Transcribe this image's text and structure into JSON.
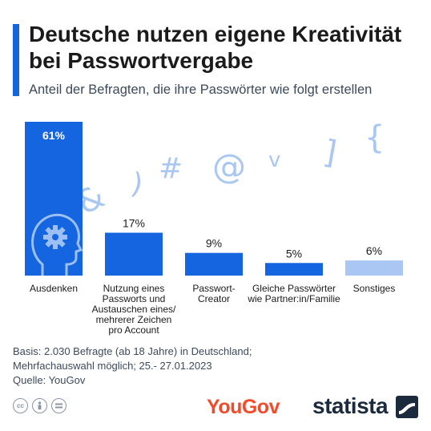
{
  "header": {
    "title": "Deutsche nutzen eigene Kreativität bei Passwortvergabe",
    "subtitle": "Anteil der Befragten, die ihre Passwörter wie folgt erstellen"
  },
  "chart_data": {
    "type": "bar",
    "title": "Deutsche nutzen eigene Kreativität bei Passwortvergabe",
    "subtitle": "Anteil der Befragten, die ihre Passwörter wie folgt erstellen",
    "categories": [
      [
        "Ausdenken"
      ],
      [
        "Nutzung eines",
        "Passworts und",
        "Austauschen eines/",
        "mehrerer Zeichen",
        "pro Account"
      ],
      [
        "Passwort-",
        "Creator"
      ],
      [
        "Gleiche Passwörter",
        "wie Partner:in/Familie"
      ],
      [
        "Sonstiges"
      ]
    ],
    "values": [
      61,
      17,
      9,
      5,
      6
    ],
    "value_labels": [
      "61%",
      "17%",
      "9%",
      "5%",
      "6%"
    ],
    "colors": [
      "#1565e0",
      "#1565e0",
      "#1565e0",
      "#1565e0",
      "#a9c7f2"
    ],
    "unit": "%",
    "ylim": [
      0,
      61
    ],
    "grid": false,
    "legend": "none"
  },
  "decorations": {
    "symbols": [
      "&",
      ")",
      "#",
      "@",
      "v",
      "]",
      "{"
    ],
    "illustration": "head-gear-icon"
  },
  "footer": {
    "basis": "Basis: 2.030 Befragte (ab 18 Jahre) in Deutschland;",
    "basis2": "Mehrfachauswahl möglich; 25.- 27.01.2023",
    "source": "Quelle: YouGov"
  },
  "branding": {
    "yougov": "YouGov",
    "statista": "statista",
    "cc_icons": [
      "cc",
      "by",
      "nd"
    ]
  }
}
